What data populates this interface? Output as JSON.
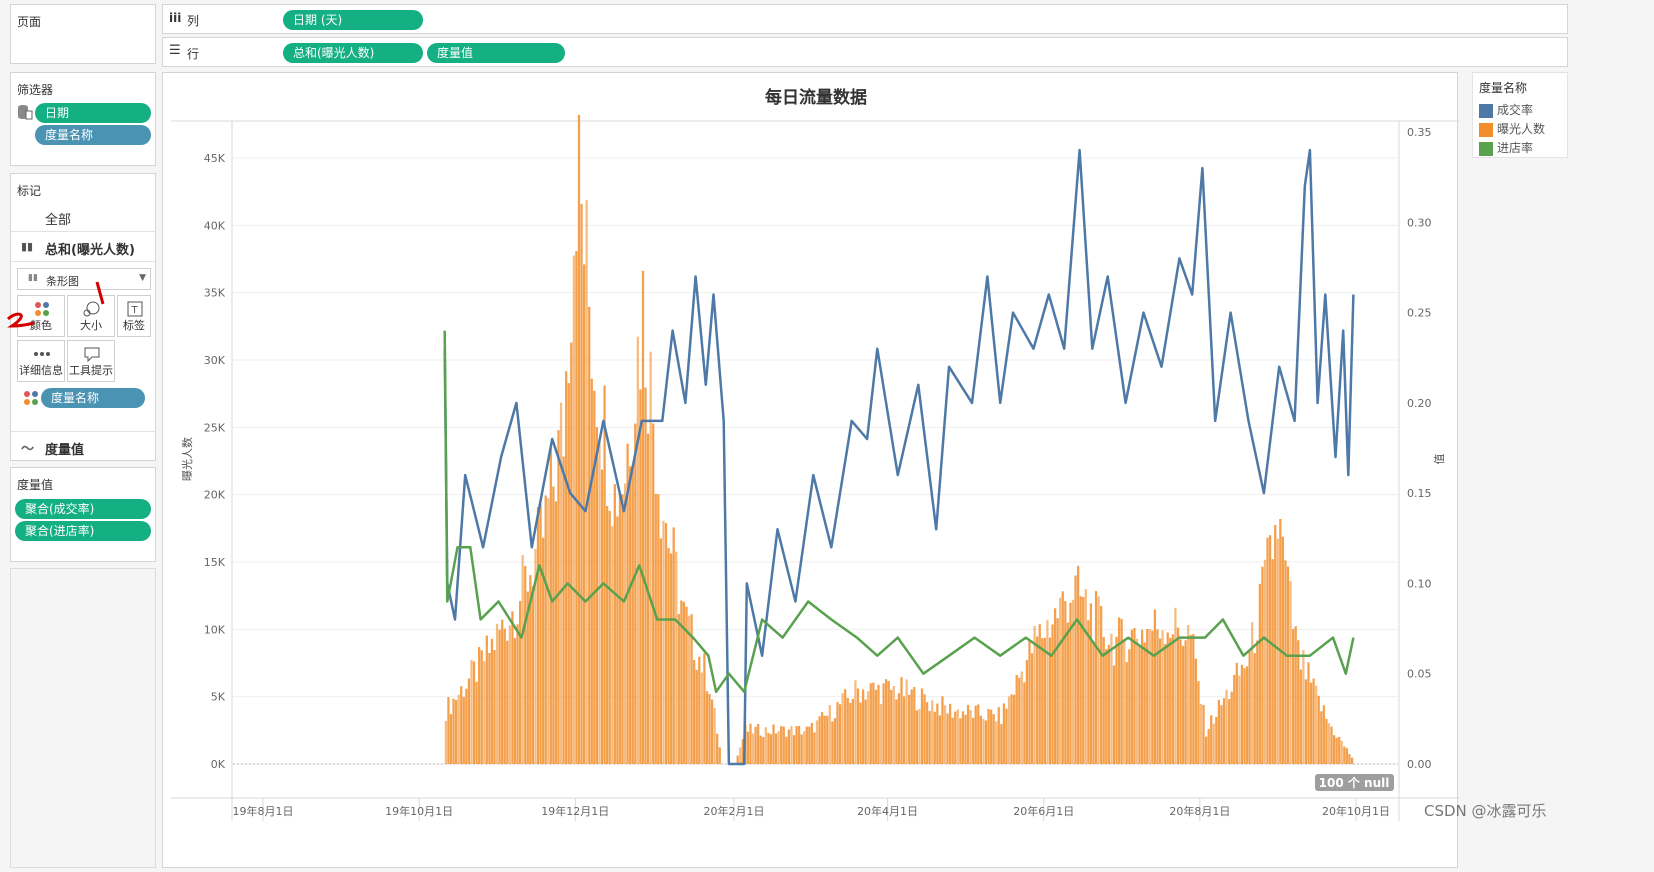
{
  "left": {
    "pages_title": "页面",
    "filters_title": "筛选器",
    "filters": [
      "日期",
      "度量名称"
    ],
    "marks_title": "标记",
    "marks_all": "全部",
    "marks_measure": "总和(曝光人数)",
    "mark_type": "条形图",
    "mark_buttons": [
      "颜色",
      "大小",
      "标签",
      "详细信息",
      "工具提示"
    ],
    "marks_pill": "度量名称",
    "marks_line_measure": "度量值",
    "measure_values_title": "度量值",
    "measure_values": [
      "聚合(成交率)",
      "聚合(进店率)"
    ]
  },
  "shelves": {
    "columns_label": "列",
    "columns_pill": "日期 (天)",
    "rows_label": "行",
    "rows_pills": [
      "总和(曝光人数)",
      "度量值"
    ]
  },
  "legend": {
    "title": "度量名称",
    "items": [
      {
        "name": "成交率",
        "color": "#4e79a7"
      },
      {
        "name": "曝光人数",
        "color": "#f28e2b"
      },
      {
        "name": "进店率",
        "color": "#59a14f"
      }
    ]
  },
  "null_badge": "100 个 null",
  "watermark": "CSDN @冰露可乐",
  "chart_data": {
    "type": "bar",
    "title": "每日流量数据",
    "ylabel": "曝光人数",
    "y2label": "值",
    "ylim": [
      0,
      45000
    ],
    "y2lim": [
      0,
      0.35
    ],
    "y_ticks": [
      "0K",
      "5K",
      "10K",
      "15K",
      "20K",
      "25K",
      "30K",
      "35K",
      "40K",
      "45K"
    ],
    "y2_ticks": [
      "0.00",
      "0.05",
      "0.10",
      "0.15",
      "0.20",
      "0.25",
      "0.30",
      "0.35"
    ],
    "x_ticks": [
      "19年8月1日",
      "19年10月1日",
      "19年12月1日",
      "20年2月1日",
      "20年4月1日",
      "20年6月1日",
      "20年8月1日",
      "20年10月1日"
    ],
    "x_range": [
      "2019-08-01",
      "2020-10-01"
    ],
    "bar_series": {
      "name": "曝光人数",
      "color": "#f28e2b",
      "start": "2019-10-11",
      "end": "2020-09-29",
      "anchors": [
        [
          "2019-10-11",
          4000
        ],
        [
          "2019-10-25",
          7500
        ],
        [
          "2019-11-08",
          12000
        ],
        [
          "2019-11-18",
          17000
        ],
        [
          "2019-11-26",
          25000
        ],
        [
          "2019-12-01",
          45000
        ],
        [
          "2019-12-08",
          30000
        ],
        [
          "2019-12-16",
          20000
        ],
        [
          "2019-12-20",
          22000
        ],
        [
          "2019-12-27",
          34000
        ],
        [
          "2020-01-03",
          20000
        ],
        [
          "2020-01-12",
          11000
        ],
        [
          "2020-01-22",
          6000
        ],
        [
          "2020-01-27",
          0
        ],
        [
          "2020-02-01",
          0
        ],
        [
          "2020-02-05",
          2500
        ],
        [
          "2020-03-01",
          2500
        ],
        [
          "2020-03-20",
          5500
        ],
        [
          "2020-04-05",
          5500
        ],
        [
          "2020-04-25",
          4000
        ],
        [
          "2020-05-15",
          3500
        ],
        [
          "2020-05-28",
          9000
        ],
        [
          "2020-06-05",
          11000
        ],
        [
          "2020-06-12",
          13000
        ],
        [
          "2020-06-28",
          9000
        ],
        [
          "2020-07-18",
          10500
        ],
        [
          "2020-07-28",
          9500
        ],
        [
          "2020-08-03",
          2500
        ],
        [
          "2020-08-20",
          8000
        ],
        [
          "2020-08-31",
          18000
        ],
        [
          "2020-09-08",
          8000
        ],
        [
          "2020-09-20",
          3000
        ],
        [
          "2020-09-29",
          500
        ]
      ]
    },
    "line_series": [
      {
        "name": "成交率",
        "color": "#4e79a7",
        "points": [
          [
            "2019-10-11",
            0.23
          ],
          [
            "2019-10-12",
            0.1
          ],
          [
            "2019-10-15",
            0.08
          ],
          [
            "2019-10-19",
            0.16
          ],
          [
            "2019-10-26",
            0.12
          ],
          [
            "2019-11-02",
            0.17
          ],
          [
            "2019-11-08",
            0.2
          ],
          [
            "2019-11-14",
            0.12
          ],
          [
            "2019-11-22",
            0.18
          ],
          [
            "2019-11-29",
            0.15
          ],
          [
            "2019-12-05",
            0.14
          ],
          [
            "2019-12-12",
            0.19
          ],
          [
            "2019-12-20",
            0.14
          ],
          [
            "2019-12-27",
            0.19
          ],
          [
            "2020-01-04",
            0.19
          ],
          [
            "2020-01-08",
            0.24
          ],
          [
            "2020-01-13",
            0.2
          ],
          [
            "2020-01-17",
            0.27
          ],
          [
            "2020-01-21",
            0.21
          ],
          [
            "2020-01-24",
            0.26
          ],
          [
            "2020-01-28",
            0.19
          ],
          [
            "2020-01-30",
            0.0
          ],
          [
            "2020-02-05",
            0.0
          ],
          [
            "2020-02-06",
            0.1
          ],
          [
            "2020-02-12",
            0.06
          ],
          [
            "2020-02-18",
            0.13
          ],
          [
            "2020-02-25",
            0.09
          ],
          [
            "2020-03-03",
            0.16
          ],
          [
            "2020-03-10",
            0.12
          ],
          [
            "2020-03-18",
            0.19
          ],
          [
            "2020-03-24",
            0.18
          ],
          [
            "2020-03-28",
            0.23
          ],
          [
            "2020-04-05",
            0.16
          ],
          [
            "2020-04-13",
            0.21
          ],
          [
            "2020-04-20",
            0.13
          ],
          [
            "2020-04-25",
            0.22
          ],
          [
            "2020-05-04",
            0.2
          ],
          [
            "2020-05-10",
            0.27
          ],
          [
            "2020-05-15",
            0.2
          ],
          [
            "2020-05-20",
            0.25
          ],
          [
            "2020-05-28",
            0.23
          ],
          [
            "2020-06-03",
            0.26
          ],
          [
            "2020-06-09",
            0.23
          ],
          [
            "2020-06-15",
            0.34
          ],
          [
            "2020-06-20",
            0.23
          ],
          [
            "2020-06-26",
            0.27
          ],
          [
            "2020-07-03",
            0.2
          ],
          [
            "2020-07-10",
            0.25
          ],
          [
            "2020-07-17",
            0.22
          ],
          [
            "2020-07-24",
            0.28
          ],
          [
            "2020-07-29",
            0.26
          ],
          [
            "2020-08-02",
            0.33
          ],
          [
            "2020-08-07",
            0.19
          ],
          [
            "2020-08-13",
            0.25
          ],
          [
            "2020-08-20",
            0.19
          ],
          [
            "2020-08-26",
            0.15
          ],
          [
            "2020-09-01",
            0.22
          ],
          [
            "2020-09-07",
            0.19
          ],
          [
            "2020-09-11",
            0.32
          ],
          [
            "2020-09-13",
            0.34
          ],
          [
            "2020-09-16",
            0.2
          ],
          [
            "2020-09-19",
            0.26
          ],
          [
            "2020-09-23",
            0.17
          ],
          [
            "2020-09-26",
            0.24
          ],
          [
            "2020-09-28",
            0.16
          ],
          [
            "2020-09-30",
            0.26
          ]
        ]
      },
      {
        "name": "进店率",
        "color": "#59a14f",
        "points": [
          [
            "2019-10-11",
            0.24
          ],
          [
            "2019-10-12",
            0.09
          ],
          [
            "2019-10-16",
            0.12
          ],
          [
            "2019-10-21",
            0.12
          ],
          [
            "2019-10-25",
            0.08
          ],
          [
            "2019-11-01",
            0.09
          ],
          [
            "2019-11-10",
            0.07
          ],
          [
            "2019-11-17",
            0.11
          ],
          [
            "2019-11-22",
            0.09
          ],
          [
            "2019-11-28",
            0.1
          ],
          [
            "2019-12-05",
            0.09
          ],
          [
            "2019-12-12",
            0.1
          ],
          [
            "2019-12-20",
            0.09
          ],
          [
            "2019-12-26",
            0.11
          ],
          [
            "2020-01-02",
            0.08
          ],
          [
            "2020-01-09",
            0.08
          ],
          [
            "2020-01-16",
            0.07
          ],
          [
            "2020-01-22",
            0.06
          ],
          [
            "2020-01-25",
            0.04
          ],
          [
            "2020-01-30",
            0.05
          ],
          [
            "2020-02-05",
            0.04
          ],
          [
            "2020-02-12",
            0.08
          ],
          [
            "2020-02-20",
            0.07
          ],
          [
            "2020-03-01",
            0.09
          ],
          [
            "2020-03-10",
            0.08
          ],
          [
            "2020-03-20",
            0.07
          ],
          [
            "2020-03-28",
            0.06
          ],
          [
            "2020-04-05",
            0.07
          ],
          [
            "2020-04-15",
            0.05
          ],
          [
            "2020-04-25",
            0.06
          ],
          [
            "2020-05-05",
            0.07
          ],
          [
            "2020-05-15",
            0.06
          ],
          [
            "2020-05-25",
            0.07
          ],
          [
            "2020-06-04",
            0.06
          ],
          [
            "2020-06-14",
            0.08
          ],
          [
            "2020-06-24",
            0.06
          ],
          [
            "2020-07-04",
            0.07
          ],
          [
            "2020-07-14",
            0.06
          ],
          [
            "2020-07-24",
            0.07
          ],
          [
            "2020-08-03",
            0.07
          ],
          [
            "2020-08-10",
            0.08
          ],
          [
            "2020-08-18",
            0.06
          ],
          [
            "2020-08-26",
            0.07
          ],
          [
            "2020-09-04",
            0.06
          ],
          [
            "2020-09-13",
            0.06
          ],
          [
            "2020-09-22",
            0.07
          ],
          [
            "2020-09-27",
            0.05
          ],
          [
            "2020-09-30",
            0.07
          ]
        ]
      }
    ]
  }
}
